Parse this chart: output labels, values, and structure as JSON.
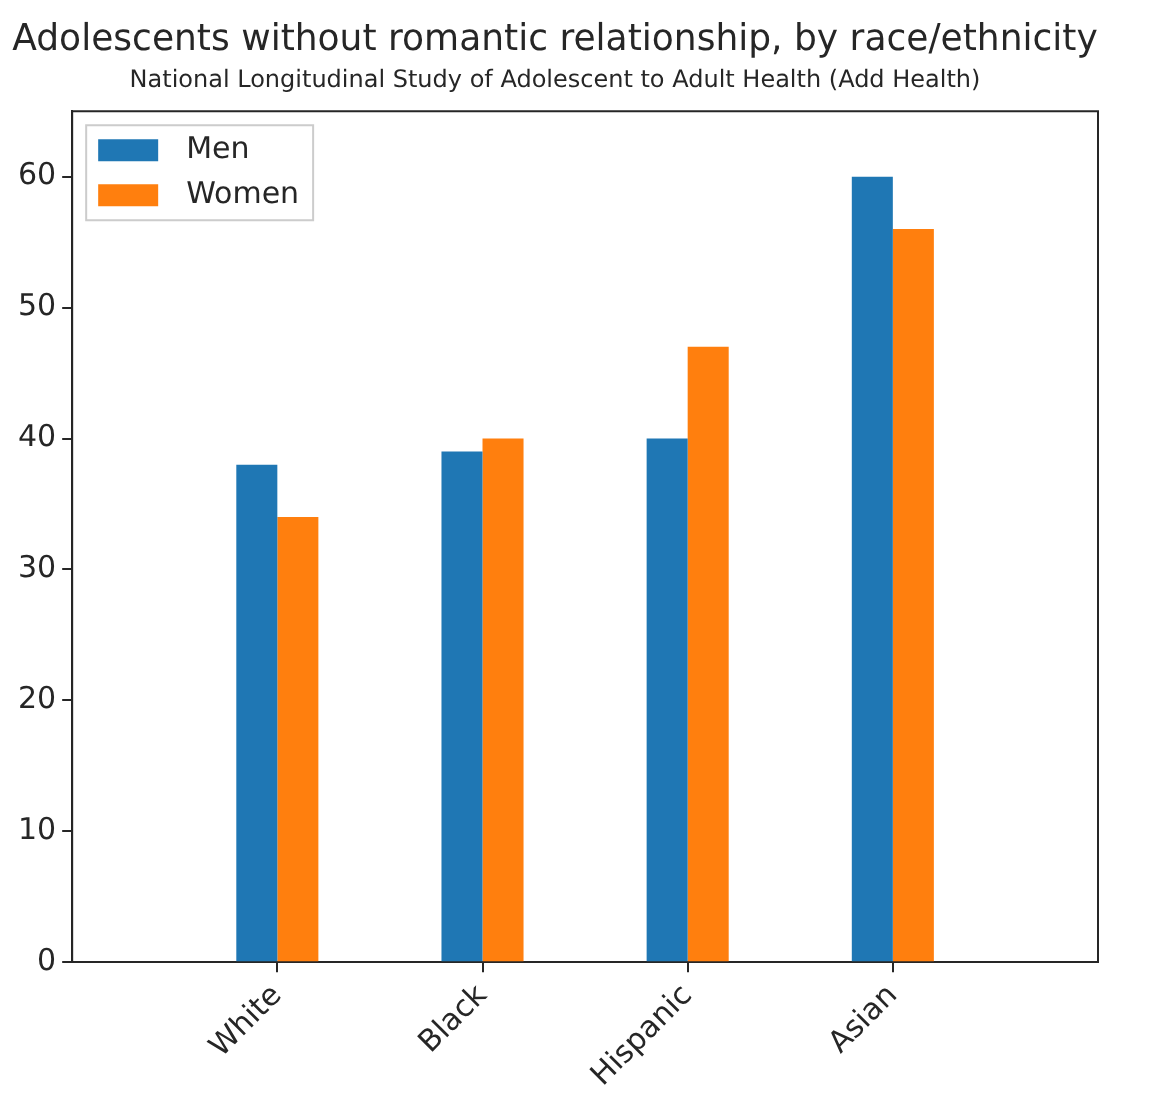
{
  "chart_data": {
    "type": "bar",
    "title": "Adolescents without romantic relationship, by race/ethnicity",
    "subtitle": "National Longitudinal Study of Adolescent to Adult Health (Add Health)",
    "categories": [
      "White",
      "Black",
      "Hispanic",
      "Asian"
    ],
    "series": [
      {
        "name": "Men",
        "color": "#1f77b4",
        "values": [
          38,
          39,
          40,
          60
        ]
      },
      {
        "name": "Women",
        "color": "#ff7f0e",
        "values": [
          34,
          40,
          47,
          56
        ]
      }
    ],
    "ylim": [
      0,
      65
    ],
    "yticks": [
      0,
      10,
      20,
      30,
      40,
      50,
      60
    ],
    "grid": false,
    "legend": "top left"
  }
}
